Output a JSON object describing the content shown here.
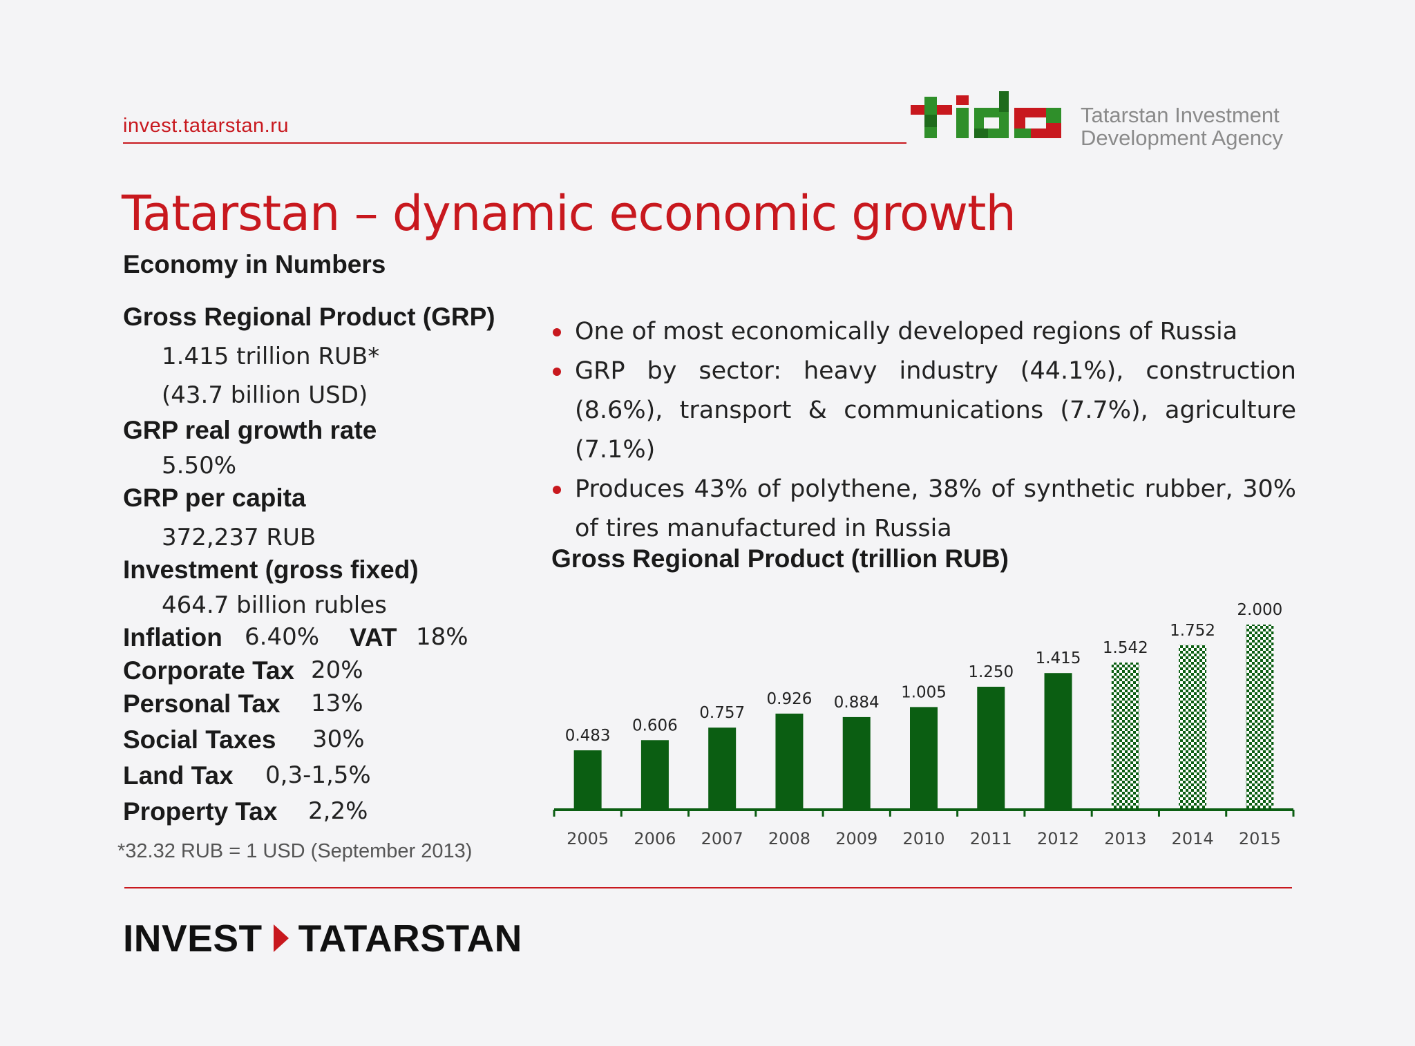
{
  "header": {
    "url": "invest.tatarstan.ru",
    "logo_text": "tida",
    "agency_line1": "Tatarstan Investment",
    "agency_line2": "Development Agency"
  },
  "title": "Tatarstan – dynamic economic growth",
  "subtitle": "Economy in Numbers",
  "indicators": {
    "grp_label": "Gross Regional Product (GRP)",
    "grp_value1": "1.415 trillion RUB*",
    "grp_value2": "(43.7 billion USD)",
    "growth_label": "GRP real growth rate",
    "growth_value": "5.50%",
    "per_capita_label": "GRP per capita",
    "per_capita_value": "372,237 RUB",
    "investment_label": "Investment (gross fixed)",
    "investment_value": "464.7 billion rubles",
    "inflation_label": "Inflation",
    "inflation_value": "6.40%",
    "vat_label": "VAT",
    "vat_value": "18%",
    "corporate_label": "Corporate Tax",
    "corporate_value": "20%",
    "personal_label": "Personal Tax",
    "personal_value": "13%",
    "social_label": "Social Taxes",
    "social_value": "30%",
    "land_label": "Land Tax",
    "land_value": "0,3-1,5%",
    "property_label": "Property Tax",
    "property_value": "2,2%"
  },
  "footnote": "*32.32 RUB = 1 USD (September 2013)",
  "bullets": [
    "One of most economically developed regions of Russia",
    "GRP by sector: heavy industry (44.1%), construction (8.6%), transport & communications (7.7%), agriculture (7.1%)",
    "Produces 43% of polythene, 38% of synthetic rubber, 30% of tires manufactured in Russia"
  ],
  "chart_title": "Gross Regional Product (trillion RUB)",
  "chart_data": {
    "type": "bar",
    "title": "Gross Regional Product (trillion RUB)",
    "categories": [
      "2005",
      "2006",
      "2007",
      "2008",
      "2009",
      "2010",
      "2011",
      "2012",
      "2013",
      "2014",
      "2015"
    ],
    "values": [
      0.483,
      0.606,
      0.757,
      0.926,
      0.884,
      1.005,
      1.25,
      1.415,
      1.542,
      1.752,
      2.0
    ],
    "value_labels": [
      "0.483",
      "0.606",
      "0.757",
      "0.926",
      "0.884",
      "1.005",
      "1.250",
      "1.415",
      "1.542",
      "1.752",
      "2.000"
    ],
    "forecast_from_index": 8,
    "ylim": [
      0,
      2.0
    ],
    "grid": false,
    "bar_color": "#0b5e12"
  },
  "footer": {
    "brand_left": "INVEST",
    "brand_right": "TATARSTAN"
  },
  "colors": {
    "accent_red": "#c8181e",
    "dark_green": "#0b5e12"
  }
}
